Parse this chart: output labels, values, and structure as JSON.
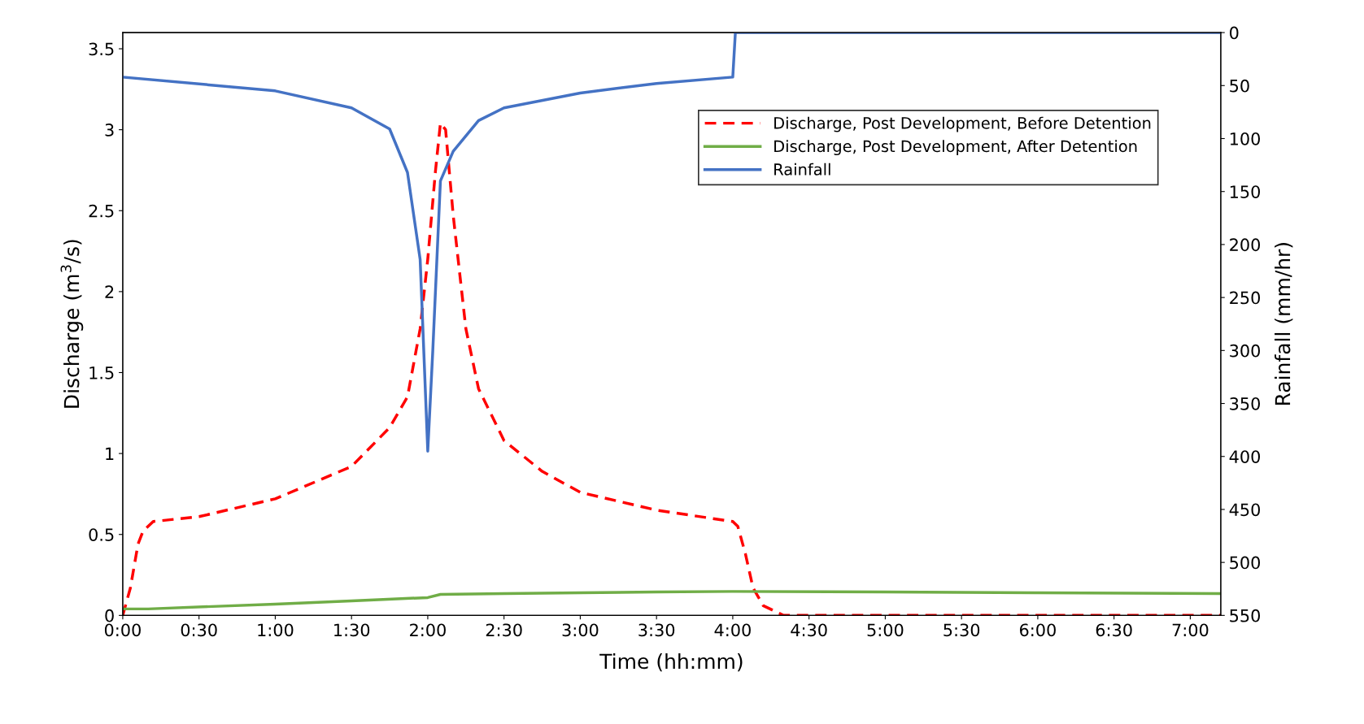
{
  "chart_data": {
    "type": "line",
    "xlabel": "Time (hh:mm)",
    "ylabel": "Discharge (m$^{3}$/s)",
    "y2label": "Rainfall (mm/hr)",
    "xlim": [
      0,
      7.2
    ],
    "ylim": [
      0,
      3.6
    ],
    "y2lim": [
      550,
      0
    ],
    "xticks": [
      {
        "value": 0,
        "label": "0:00"
      },
      {
        "value": 0.5,
        "label": "0:30"
      },
      {
        "value": 1,
        "label": "1:00"
      },
      {
        "value": 1.5,
        "label": "1:30"
      },
      {
        "value": 2,
        "label": "2:00"
      },
      {
        "value": 2.5,
        "label": "2:30"
      },
      {
        "value": 3,
        "label": "3:00"
      },
      {
        "value": 3.5,
        "label": "3:30"
      },
      {
        "value": 4,
        "label": "4:00"
      },
      {
        "value": 4.5,
        "label": "4:30"
      },
      {
        "value": 5,
        "label": "5:00"
      },
      {
        "value": 5.5,
        "label": "5:30"
      },
      {
        "value": 6,
        "label": "6:00"
      },
      {
        "value": 6.5,
        "label": "6:30"
      },
      {
        "value": 7,
        "label": "7:00"
      }
    ],
    "yticks": [
      0,
      0.5,
      1,
      1.5,
      2,
      2.5,
      3,
      3.5
    ],
    "y2ticks": [
      0,
      50,
      100,
      150,
      200,
      250,
      300,
      350,
      400,
      450,
      500,
      550
    ],
    "grid": false,
    "legend": "top right",
    "marker": "none",
    "series": [
      {
        "name": "Discharge, Post Development, Before Detention",
        "color": "#ff0000",
        "line_style": "dashed",
        "x": [
          0,
          0.05,
          0.1,
          0.133,
          0.2,
          0.5,
          1,
          1.5,
          1.75,
          1.867,
          1.95,
          2,
          2.05,
          2.083,
          2.117,
          2.167,
          2.25,
          2.333,
          2.5,
          2.75,
          3,
          3.5,
          4,
          4.033,
          4.083,
          4.133,
          4.2,
          4.333,
          7.2
        ],
        "values": [
          0,
          0.17,
          0.44,
          0.52,
          0.58,
          0.61,
          0.72,
          0.92,
          1.16,
          1.35,
          1.77,
          2.2,
          2.74,
          3.04,
          3.0,
          2.47,
          1.77,
          1.4,
          1.08,
          0.89,
          0.76,
          0.65,
          0.58,
          0.55,
          0.38,
          0.17,
          0.06,
          0,
          0
        ]
      },
      {
        "name": "Discharge, Post Development, After Detention",
        "color": "#70ad47",
        "line_style": "solid",
        "x": [
          0,
          0.167,
          1,
          1.5,
          2,
          2.083,
          2.5,
          3,
          3.5,
          4,
          5,
          6,
          7.2
        ],
        "values": [
          0.04,
          0.04,
          0.07,
          0.09,
          0.11,
          0.13,
          0.135,
          0.14,
          0.145,
          0.148,
          0.145,
          0.14,
          0.135
        ]
      },
      {
        "name": "Rainfall",
        "color": "#4472c4",
        "line_style": "solid",
        "axis": "y2",
        "x": [
          0,
          1,
          1.5,
          1.75,
          1.867,
          1.95,
          2,
          2.033,
          2.083,
          2.167,
          2.333,
          2.5,
          3,
          3.5,
          4,
          4.017,
          7.2
        ],
        "values": [
          42,
          55,
          71,
          91,
          132,
          214,
          395,
          300,
          140,
          112,
          83,
          71,
          57,
          48,
          42,
          0,
          0
        ]
      }
    ]
  }
}
